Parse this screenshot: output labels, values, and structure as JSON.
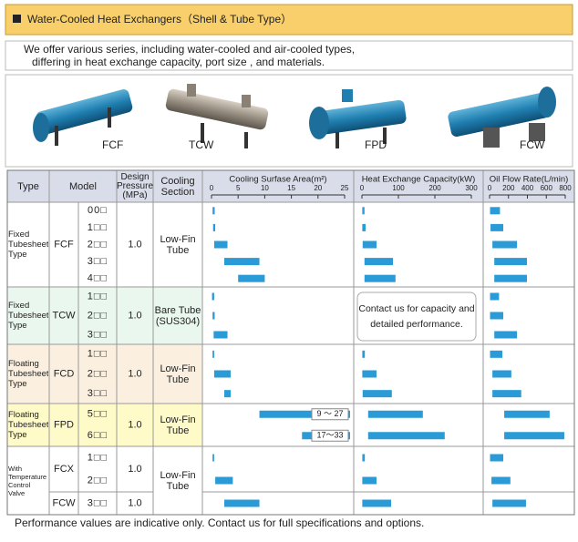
{
  "header": {
    "title": "Water-Cooled Heat Exchangers（Shell & Tube Type）"
  },
  "intro": [
    "We offer various series, including water-cooled and air-cooled types,",
    "differing in heat exchange capacity, port size , and materials."
  ],
  "products": [
    "FCF",
    "TCW",
    "FPD",
    "FCW"
  ],
  "table": {
    "headers": {
      "type": "Type",
      "model": "Model",
      "pressure": "Design Pressure (MPa)",
      "cooling": "Cooling Section"
    },
    "axes": {
      "area": {
        "title": "Cooling Surfase Area(m²)",
        "xlim": [
          0,
          25
        ],
        "xticks": [
          0,
          5,
          10,
          15,
          20,
          25
        ]
      },
      "capacity": {
        "title": "Heat Exchange Capacity(kW)",
        "xlim": [
          0,
          300
        ],
        "xticks": [
          0,
          100,
          200,
          300
        ]
      },
      "flow": {
        "title": "Oil Flow Rate(L/min)",
        "xlim": [
          0,
          800
        ],
        "xticks": [
          0,
          200,
          400,
          600,
          800
        ]
      }
    },
    "bar_color": "#2a9bd7",
    "capacity_note": "Contact us for capacity and detailed performance.",
    "groups": [
      {
        "type": "Fixed Tubesheet Type",
        "cooling": "Low-Fin Tube",
        "color": "#ffffff",
        "series": [
          {
            "name": "FCF",
            "pressure": "1.0",
            "rows": [
              {
                "model": "00□",
                "area": [
                  0.2,
                  0.6
                ],
                "capacity": [
                  1,
                  7
                ],
                "flow": [
                  5,
                  110
                ]
              },
              {
                "model": "1□□",
                "area": [
                  0.3,
                  0.7
                ],
                "capacity": [
                  1,
                  10
                ],
                "flow": [
                  10,
                  145
                ]
              },
              {
                "model": "2□□",
                "area": [
                  0.5,
                  3
                ],
                "capacity": [
                  2,
                  40
                ],
                "flow": [
                  30,
                  290
                ]
              },
              {
                "model": "3□□",
                "area": [
                  2.4,
                  9
                ],
                "capacity": [
                  7,
                  85
                ],
                "flow": [
                  50,
                  395
                ]
              },
              {
                "model": "4□□",
                "area": [
                  5,
                  10
                ],
                "capacity": [
                  7,
                  92
                ],
                "flow": [
                  50,
                  395
                ]
              }
            ]
          }
        ]
      },
      {
        "type": "Fixed Tubesheet Type",
        "cooling": "Bare Tube (SUS304)",
        "color": "#eaf7ee",
        "series": [
          {
            "name": "TCW",
            "pressure": "1.0",
            "rows": [
              {
                "model": "1□□",
                "area": [
                  0.1,
                  0.5
                ],
                "capacity": null,
                "flow": [
                  5,
                  100
                ]
              },
              {
                "model": "2□□",
                "area": [
                  0.2,
                  0.6
                ],
                "capacity": null,
                "flow": [
                  5,
                  145
                ]
              },
              {
                "model": "3□□",
                "area": [
                  0.4,
                  3
                ],
                "capacity": null,
                "flow": [
                  50,
                  290
                ]
              }
            ]
          }
        ]
      },
      {
        "type": "Floating Tubesheet Type",
        "cooling": "Low-Fin Tube",
        "color": "#fbf0e0",
        "series": [
          {
            "name": "FCD",
            "pressure": "1.0",
            "rows": [
              {
                "model": "1□□",
                "area": [
                  0.2,
                  0.5
                ],
                "capacity": [
                  1,
                  8
                ],
                "flow": [
                  5,
                  135
                ]
              },
              {
                "model": "2□□",
                "area": [
                  0.5,
                  3.6
                ],
                "capacity": [
                  1,
                  40
                ],
                "flow": [
                  30,
                  230
                ]
              },
              {
                "model": "3□□",
                "area": [
                  2.4,
                  3.6
                ],
                "capacity": [
                  2,
                  82
                ],
                "flow": [
                  30,
                  335
                ]
              }
            ]
          }
        ]
      },
      {
        "type": "Floating Tubesheet Type",
        "cooling": "Low-Fin Tube",
        "color": "#fffbc8",
        "series": [
          {
            "name": "FPD",
            "pressure": "1.0",
            "rows": [
              {
                "model": "5□□",
                "area": [
                  9,
                  27
                ],
                "area_label": "9 ～ 27",
                "capacity": [
                  17,
                  167
                ],
                "flow": [
                  155,
                  635
                ]
              },
              {
                "model": "6□□",
                "area": [
                  17,
                  33
                ],
                "area_label": "17～33",
                "capacity": [
                  17,
                  227
                ],
                "flow": [
                  155,
                  790
                ]
              }
            ]
          }
        ]
      },
      {
        "type": "With Temperature Control Valve",
        "cooling": "Low-Fin Tube",
        "color": "#ffffff",
        "series": [
          {
            "name": "FCX",
            "pressure": "1.0",
            "rows": [
              {
                "model": "1□□",
                "area": [
                  0.2,
                  0.5
                ],
                "capacity": [
                  1,
                  8
                ],
                "flow": [
                  5,
                  145
                ]
              },
              {
                "model": "2□□",
                "area": [
                  0.7,
                  4
                ],
                "capacity": [
                  1,
                  40
                ],
                "flow": [
                  20,
                  220
                ]
              }
            ]
          },
          {
            "name": "FCW",
            "pressure": "1.0",
            "rows": [
              {
                "model": "3□□",
                "area": [
                  2.4,
                  9
                ],
                "capacity": [
                  1,
                  80
                ],
                "flow": [
                  30,
                  385
                ]
              }
            ]
          }
        ]
      }
    ]
  },
  "footer": "Performance values are indicative only. Contact us for full specifications and options."
}
